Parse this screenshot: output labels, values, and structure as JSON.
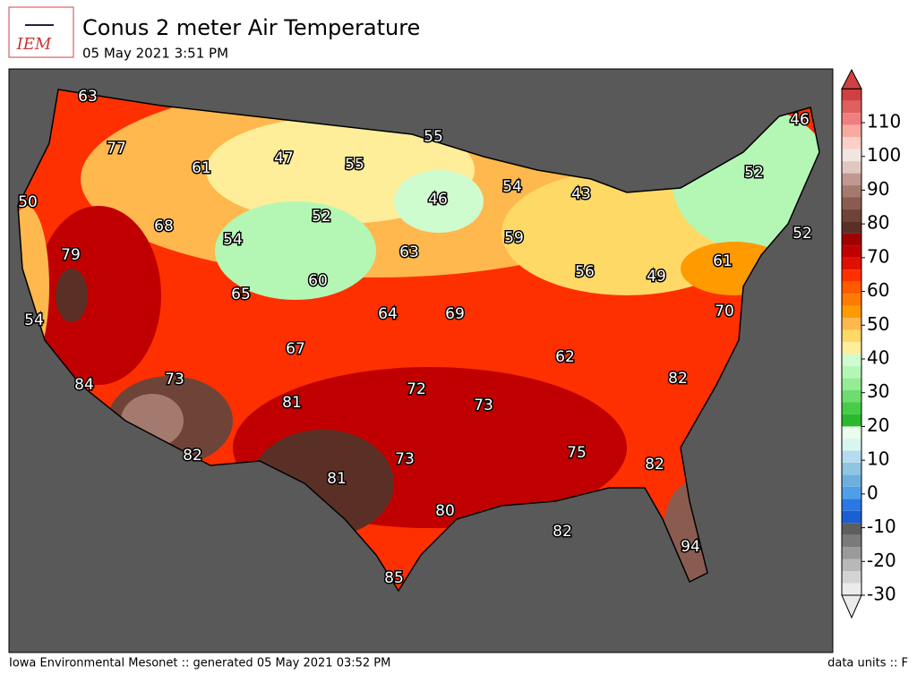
{
  "header": {
    "logo": "IEM",
    "title": "Conus 2 meter Air Temperature",
    "subtitle": "05 May 2021 3:51 PM"
  },
  "map": {
    "labels": [
      63,
      77,
      61,
      47,
      55,
      55,
      46,
      52,
      54,
      43,
      46,
      50,
      68,
      52,
      54,
      63,
      59,
      52,
      61,
      79,
      65,
      60,
      56,
      49,
      54,
      64,
      69,
      70,
      67,
      62,
      84,
      73,
      72,
      73,
      82,
      81,
      82,
      73,
      75,
      82,
      81,
      80,
      82,
      94,
      85
    ]
  },
  "colorbar": {
    "limits": [
      -30,
      120
    ],
    "ticks": [
      -30,
      -20,
      -10,
      0,
      10,
      20,
      30,
      40,
      50,
      60,
      70,
      80,
      90,
      100,
      110
    ],
    "colors": [
      "#ebebeb",
      "#d4d4d4",
      "#b8b8b8",
      "#9a9a9a",
      "#7a7a7a",
      "#5e5e5e",
      "#1a5fd4",
      "#2a78e4",
      "#4f9fe8",
      "#6db0e0",
      "#8fc4e2",
      "#b4dcee",
      "#d8f6f0",
      "#ecfdec",
      "#2cb82c",
      "#48cc48",
      "#6edc6e",
      "#94ec94",
      "#b4f7b4",
      "#cffccf",
      "#ffee99",
      "#ffd966",
      "#ffb84d",
      "#ff9a00",
      "#ff7a00",
      "#ff5a00",
      "#ff3000",
      "#e01000",
      "#c00000",
      "#a00000",
      "#5a3026",
      "#6e4438",
      "#8a5c50",
      "#a47a6e",
      "#c09890",
      "#e0c8c0",
      "#f0e6e0",
      "#fcd0c8",
      "#f8aaa0",
      "#f08080",
      "#e06060",
      "#d04040"
    ]
  },
  "footer": {
    "left": "Iowa Environmental Mesonet :: generated 05 May 2021 03:52 PM",
    "right": "data units :: F"
  }
}
